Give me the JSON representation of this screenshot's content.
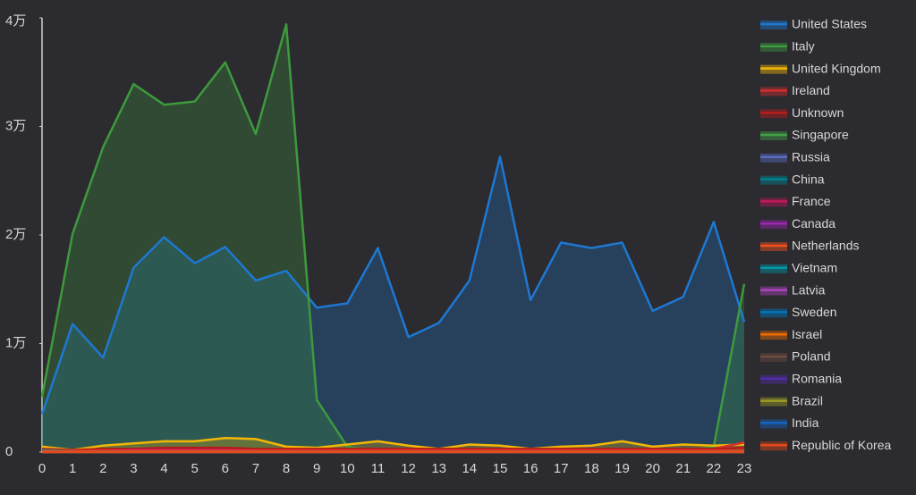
{
  "chart_data": {
    "type": "area",
    "categories": [
      0,
      1,
      2,
      3,
      4,
      5,
      6,
      7,
      8,
      9,
      10,
      11,
      12,
      13,
      14,
      15,
      16,
      17,
      18,
      19,
      20,
      21,
      22,
      23
    ],
    "ylim": [
      0,
      40000
    ],
    "yticks": [
      0,
      {
        "value": 10000,
        "label": "1万"
      },
      {
        "value": 20000,
        "label": "2万"
      },
      {
        "value": 30000,
        "label": "3万"
      },
      {
        "value": 40000,
        "label": "4万"
      }
    ],
    "legend": "right",
    "series": [
      {
        "name": "United States",
        "color": "#1e78d2",
        "values": [
          3500,
          11800,
          8700,
          17000,
          19800,
          17400,
          18900,
          15800,
          16700,
          13300,
          13700,
          18800,
          10600,
          11900,
          15800,
          27200,
          14000,
          19300,
          18800,
          19300,
          13000,
          14300,
          21200,
          12000
        ]
      },
      {
        "name": "Italy",
        "color": "#3d9a3d",
        "values": [
          5100,
          20100,
          28100,
          33900,
          32000,
          32300,
          35900,
          29300,
          39400,
          4800,
          500,
          0,
          0,
          0,
          0,
          0,
          0,
          0,
          0,
          0,
          0,
          0,
          500,
          15500
        ]
      },
      {
        "name": "United Kingdom",
        "color": "#f2b705",
        "values": [
          500,
          200,
          600,
          800,
          1000,
          1000,
          1300,
          1200,
          500,
          400,
          700,
          1000,
          600,
          300,
          700,
          600,
          300,
          500,
          600,
          1000,
          500,
          700,
          600,
          700
        ]
      },
      {
        "name": "Ireland",
        "color": "#d32f2f",
        "values": [
          200,
          100,
          200,
          200,
          300,
          300,
          300,
          200,
          200,
          200,
          200,
          200,
          200,
          200,
          200,
          200,
          200,
          200,
          200,
          200,
          200,
          200,
          300,
          900
        ]
      },
      {
        "name": "Unknown",
        "color": "#b71c1c",
        "values": [
          300,
          200,
          300,
          300,
          400,
          400,
          400,
          300,
          300,
          300,
          300,
          300,
          300,
          300,
          300,
          300,
          300,
          300,
          300,
          300,
          300,
          300,
          300,
          400
        ]
      },
      {
        "name": "Singapore",
        "color": "#43a047",
        "values": [
          100,
          100,
          100,
          100,
          100,
          100,
          100,
          100,
          100,
          100,
          100,
          100,
          100,
          100,
          100,
          100,
          100,
          100,
          100,
          100,
          100,
          100,
          100,
          100
        ]
      },
      {
        "name": "Russia",
        "color": "#5c6bc0",
        "values": [
          100,
          100,
          100,
          100,
          100,
          100,
          100,
          100,
          100,
          100,
          100,
          100,
          100,
          100,
          100,
          100,
          100,
          100,
          100,
          100,
          100,
          100,
          100,
          100
        ]
      },
      {
        "name": "China",
        "color": "#00838f",
        "values": [
          200,
          100,
          100,
          100,
          100,
          100,
          100,
          100,
          100,
          100,
          100,
          100,
          100,
          100,
          100,
          100,
          100,
          100,
          100,
          100,
          100,
          100,
          100,
          100
        ]
      },
      {
        "name": "France",
        "color": "#c2185b",
        "values": [
          100,
          100,
          100,
          200,
          200,
          200,
          200,
          100,
          100,
          100,
          100,
          100,
          100,
          100,
          100,
          100,
          100,
          100,
          100,
          100,
          100,
          100,
          100,
          100
        ]
      },
      {
        "name": "Canada",
        "color": "#9c27b0",
        "values": [
          100,
          100,
          100,
          100,
          100,
          100,
          100,
          100,
          100,
          100,
          100,
          100,
          100,
          100,
          100,
          100,
          100,
          100,
          100,
          100,
          100,
          100,
          100,
          100
        ]
      },
      {
        "name": "Netherlands",
        "color": "#f4511e",
        "values": [
          100,
          100,
          100,
          100,
          100,
          100,
          100,
          100,
          100,
          100,
          100,
          100,
          100,
          100,
          100,
          100,
          100,
          100,
          100,
          100,
          100,
          100,
          100,
          100
        ]
      },
      {
        "name": "Vietnam",
        "color": "#0097a7",
        "values": [
          0,
          0,
          0,
          0,
          0,
          0,
          0,
          0,
          0,
          0,
          0,
          0,
          0,
          0,
          0,
          0,
          0,
          0,
          0,
          0,
          0,
          0,
          0,
          0
        ]
      },
      {
        "name": "Latvia",
        "color": "#ab47bc",
        "values": [
          0,
          0,
          0,
          0,
          0,
          0,
          0,
          0,
          0,
          0,
          0,
          0,
          0,
          0,
          0,
          0,
          0,
          0,
          0,
          0,
          0,
          0,
          0,
          0
        ]
      },
      {
        "name": "Sweden",
        "color": "#0277bd",
        "values": [
          0,
          0,
          0,
          0,
          0,
          0,
          0,
          0,
          0,
          0,
          0,
          0,
          0,
          0,
          0,
          0,
          0,
          0,
          0,
          0,
          0,
          0,
          0,
          0
        ]
      },
      {
        "name": "Israel",
        "color": "#ef6c00",
        "values": [
          0,
          0,
          0,
          0,
          0,
          0,
          0,
          0,
          0,
          0,
          0,
          0,
          0,
          0,
          0,
          0,
          0,
          0,
          0,
          0,
          0,
          0,
          0,
          0
        ]
      },
      {
        "name": "Poland",
        "color": "#6d4c41",
        "values": [
          0,
          0,
          0,
          0,
          0,
          0,
          0,
          0,
          0,
          0,
          0,
          0,
          0,
          0,
          0,
          0,
          0,
          0,
          0,
          0,
          0,
          0,
          0,
          0
        ]
      },
      {
        "name": "Romania",
        "color": "#512da8",
        "values": [
          0,
          0,
          0,
          0,
          0,
          0,
          0,
          0,
          0,
          0,
          0,
          0,
          0,
          0,
          0,
          0,
          0,
          0,
          0,
          0,
          0,
          0,
          0,
          0
        ]
      },
      {
        "name": "Brazil",
        "color": "#9e9d24",
        "values": [
          0,
          0,
          0,
          0,
          0,
          0,
          0,
          0,
          0,
          0,
          0,
          0,
          0,
          0,
          0,
          0,
          0,
          0,
          0,
          0,
          0,
          0,
          0,
          0
        ]
      },
      {
        "name": "India",
        "color": "#1565c0",
        "values": [
          0,
          0,
          0,
          0,
          0,
          0,
          0,
          0,
          0,
          0,
          0,
          0,
          0,
          0,
          0,
          0,
          0,
          0,
          0,
          0,
          0,
          0,
          0,
          0
        ]
      },
      {
        "name": "Republic of Korea",
        "color": "#e64a19",
        "values": [
          0,
          0,
          0,
          0,
          0,
          0,
          0,
          0,
          0,
          0,
          0,
          0,
          0,
          0,
          0,
          0,
          0,
          0,
          0,
          0,
          0,
          0,
          0,
          0
        ]
      }
    ]
  }
}
